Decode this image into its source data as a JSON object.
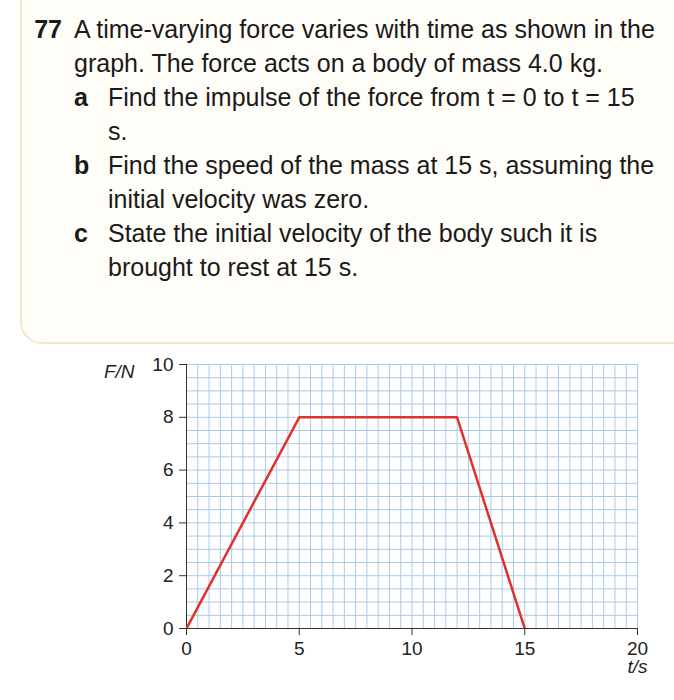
{
  "question": {
    "number": "77",
    "stem": "A time-varying force varies with time as shown in the graph. The force acts on a body of mass 4.0 kg.",
    "parts": [
      {
        "label": "a",
        "text": "Find the impulse of the force from t = 0 to t = 15 s."
      },
      {
        "label": "b",
        "text": "Find the speed of the mass at 15 s, assuming the initial velocity was zero."
      },
      {
        "label": "c",
        "text": "State the initial velocity of the body such it is brought to rest at 15 s."
      }
    ]
  },
  "chart_data": {
    "type": "line",
    "x_label": "t/s",
    "y_label": "F/N",
    "x": [
      0,
      5,
      12,
      15
    ],
    "values": [
      0,
      8,
      8,
      0
    ],
    "color": "#e0322b",
    "xlim": [
      0,
      20
    ],
    "xticks": [
      0,
      5,
      10,
      15,
      20
    ],
    "ylim": [
      0,
      10
    ],
    "yticks": [
      0,
      2,
      4,
      6,
      8,
      10
    ],
    "grid": true
  }
}
